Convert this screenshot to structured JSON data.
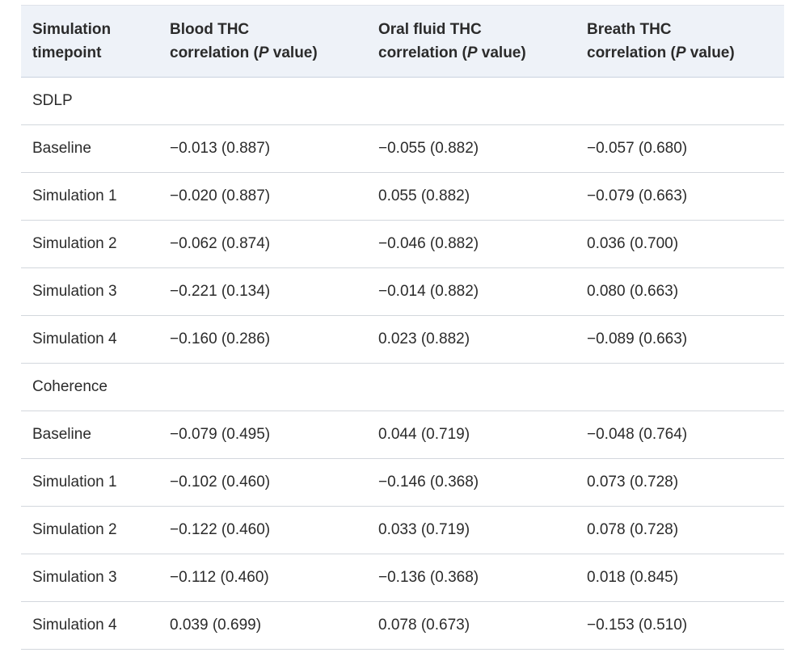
{
  "table": {
    "headers": [
      {
        "line1": "Simulation",
        "line2_pre": "timepoint",
        "line2_ital": "",
        "line2_post": ""
      },
      {
        "line1": "Blood THC",
        "line2_pre": "correlation (",
        "line2_ital": "P",
        "line2_post": " value)"
      },
      {
        "line1": "Oral fluid THC",
        "line2_pre": "correlation (",
        "line2_ital": "P",
        "line2_post": " value)"
      },
      {
        "line1": "Breath THC",
        "line2_pre": "correlation (",
        "line2_ital": "P",
        "line2_post": " value)"
      }
    ],
    "rows": [
      {
        "type": "section",
        "cells": [
          "SDLP",
          "",
          "",
          ""
        ]
      },
      {
        "type": "data",
        "cells": [
          "Baseline",
          "−0.013 (0.887)",
          "−0.055 (0.882)",
          "−0.057 (0.680)"
        ]
      },
      {
        "type": "data",
        "cells": [
          "Simulation 1",
          "−0.020 (0.887)",
          "0.055 (0.882)",
          "−0.079 (0.663)"
        ]
      },
      {
        "type": "data",
        "cells": [
          "Simulation 2",
          "−0.062 (0.874)",
          "−0.046 (0.882)",
          "0.036 (0.700)"
        ]
      },
      {
        "type": "data",
        "cells": [
          "Simulation 3",
          "−0.221 (0.134)",
          "−0.014 (0.882)",
          "0.080 (0.663)"
        ]
      },
      {
        "type": "data",
        "cells": [
          "Simulation 4",
          "−0.160 (0.286)",
          "0.023 (0.882)",
          "−0.089 (0.663)"
        ]
      },
      {
        "type": "section",
        "cells": [
          "Coherence",
          "",
          "",
          ""
        ]
      },
      {
        "type": "data",
        "cells": [
          "Baseline",
          "−0.079 (0.495)",
          "0.044 (0.719)",
          "−0.048 (0.764)"
        ]
      },
      {
        "type": "data",
        "cells": [
          "Simulation 1",
          "−0.102 (0.460)",
          "−0.146 (0.368)",
          "0.073 (0.728)"
        ]
      },
      {
        "type": "data",
        "cells": [
          "Simulation 2",
          "−0.122 (0.460)",
          "0.033 (0.719)",
          "0.078 (0.728)"
        ]
      },
      {
        "type": "data",
        "cells": [
          "Simulation 3",
          "−0.112 (0.460)",
          "−0.136 (0.368)",
          "0.018 (0.845)"
        ]
      },
      {
        "type": "data",
        "cells": [
          "Simulation 4",
          "0.039 (0.699)",
          "0.078 (0.673)",
          "−0.153 (0.510)"
        ]
      }
    ]
  },
  "colors": {
    "header_background": "#eef2f8",
    "row_divider": "#d3d7dd",
    "text": "#2b2b2b"
  }
}
